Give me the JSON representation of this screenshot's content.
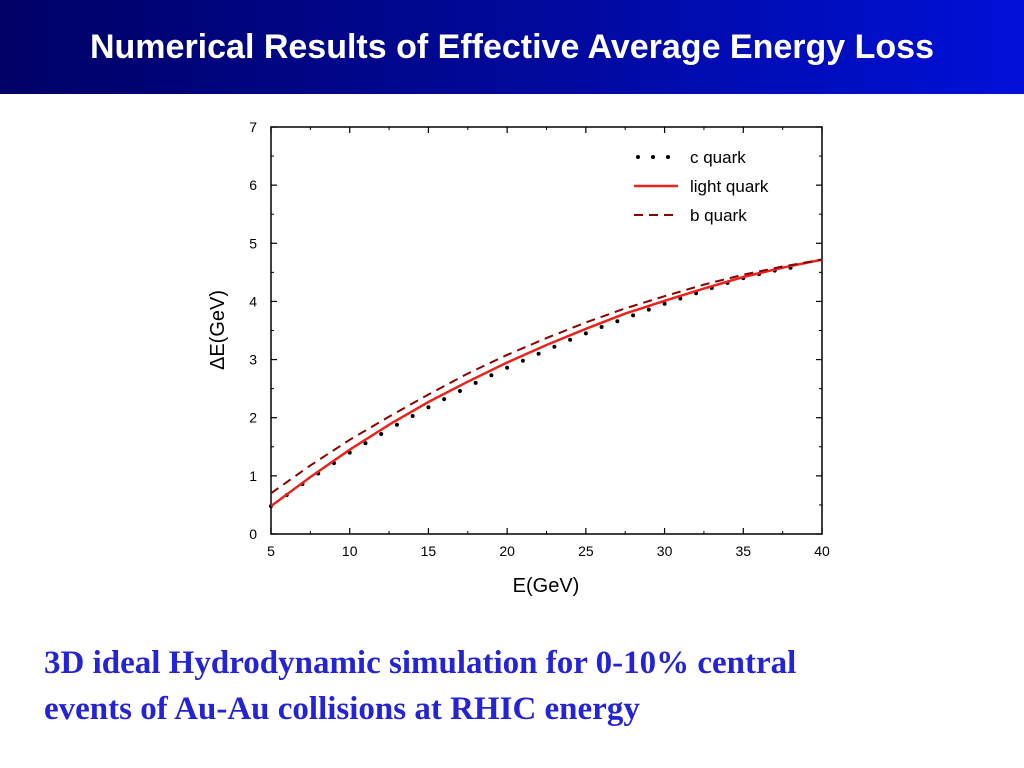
{
  "header": {
    "title": "Numerical Results of Effective Average Energy Loss"
  },
  "caption": {
    "line1": "3D ideal Hydrodynamic simulation for 0-10% central",
    "line2": "events of Au-Au collisions at RHIC energy"
  },
  "colors": {
    "title_bar": "#000a9e",
    "caption": "#2424d6",
    "c_quark": "#000000",
    "light_quark": "#e8241c",
    "b_quark": "#8b0000"
  },
  "chart_data": {
    "type": "line",
    "xlabel": "E(GeV)",
    "ylabel": "ΔE(GeV)",
    "xlim": [
      5,
      40
    ],
    "ylim": [
      0,
      7
    ],
    "xticks": [
      5,
      10,
      15,
      20,
      25,
      30,
      35,
      40
    ],
    "yticks": [
      0,
      1,
      2,
      3,
      4,
      5,
      6,
      7
    ],
    "legend_position": "top-right",
    "series": [
      {
        "name": "c quark",
        "style": "dotted",
        "color": "#000000",
        "x": [
          5,
          6,
          7,
          8,
          9,
          10,
          11,
          12,
          13,
          14,
          15,
          16,
          17,
          18,
          19,
          20,
          21,
          22,
          23,
          24,
          25,
          26,
          27,
          28,
          29,
          30,
          31,
          32,
          33,
          34,
          35,
          36,
          37,
          38
        ],
        "y": [
          0.48,
          0.67,
          0.86,
          1.04,
          1.22,
          1.4,
          1.56,
          1.72,
          1.88,
          2.03,
          2.18,
          2.32,
          2.46,
          2.6,
          2.73,
          2.86,
          2.98,
          3.1,
          3.22,
          3.34,
          3.45,
          3.56,
          3.66,
          3.76,
          3.86,
          3.96,
          4.05,
          4.14,
          4.23,
          4.32,
          4.4,
          4.47,
          4.53,
          4.58
        ]
      },
      {
        "name": "light quark",
        "style": "solid",
        "color": "#e8241c",
        "x": [
          5,
          7.5,
          10,
          12.5,
          15,
          17.5,
          20,
          22.5,
          25,
          27.5,
          30,
          32.5,
          35,
          37.5,
          40
        ],
        "y": [
          0.48,
          0.98,
          1.45,
          1.88,
          2.27,
          2.62,
          2.95,
          3.25,
          3.53,
          3.79,
          4.01,
          4.22,
          4.42,
          4.58,
          4.72
        ]
      },
      {
        "name": "b quark",
        "style": "dashed",
        "color": "#8b0000",
        "x": [
          5,
          7.5,
          10,
          12.5,
          15,
          17.5,
          20,
          22.5,
          25,
          27.5,
          30,
          32.5,
          35,
          37.5,
          40
        ],
        "y": [
          0.7,
          1.18,
          1.62,
          2.02,
          2.4,
          2.76,
          3.08,
          3.37,
          3.64,
          3.88,
          4.09,
          4.29,
          4.46,
          4.6,
          4.72
        ]
      }
    ]
  }
}
